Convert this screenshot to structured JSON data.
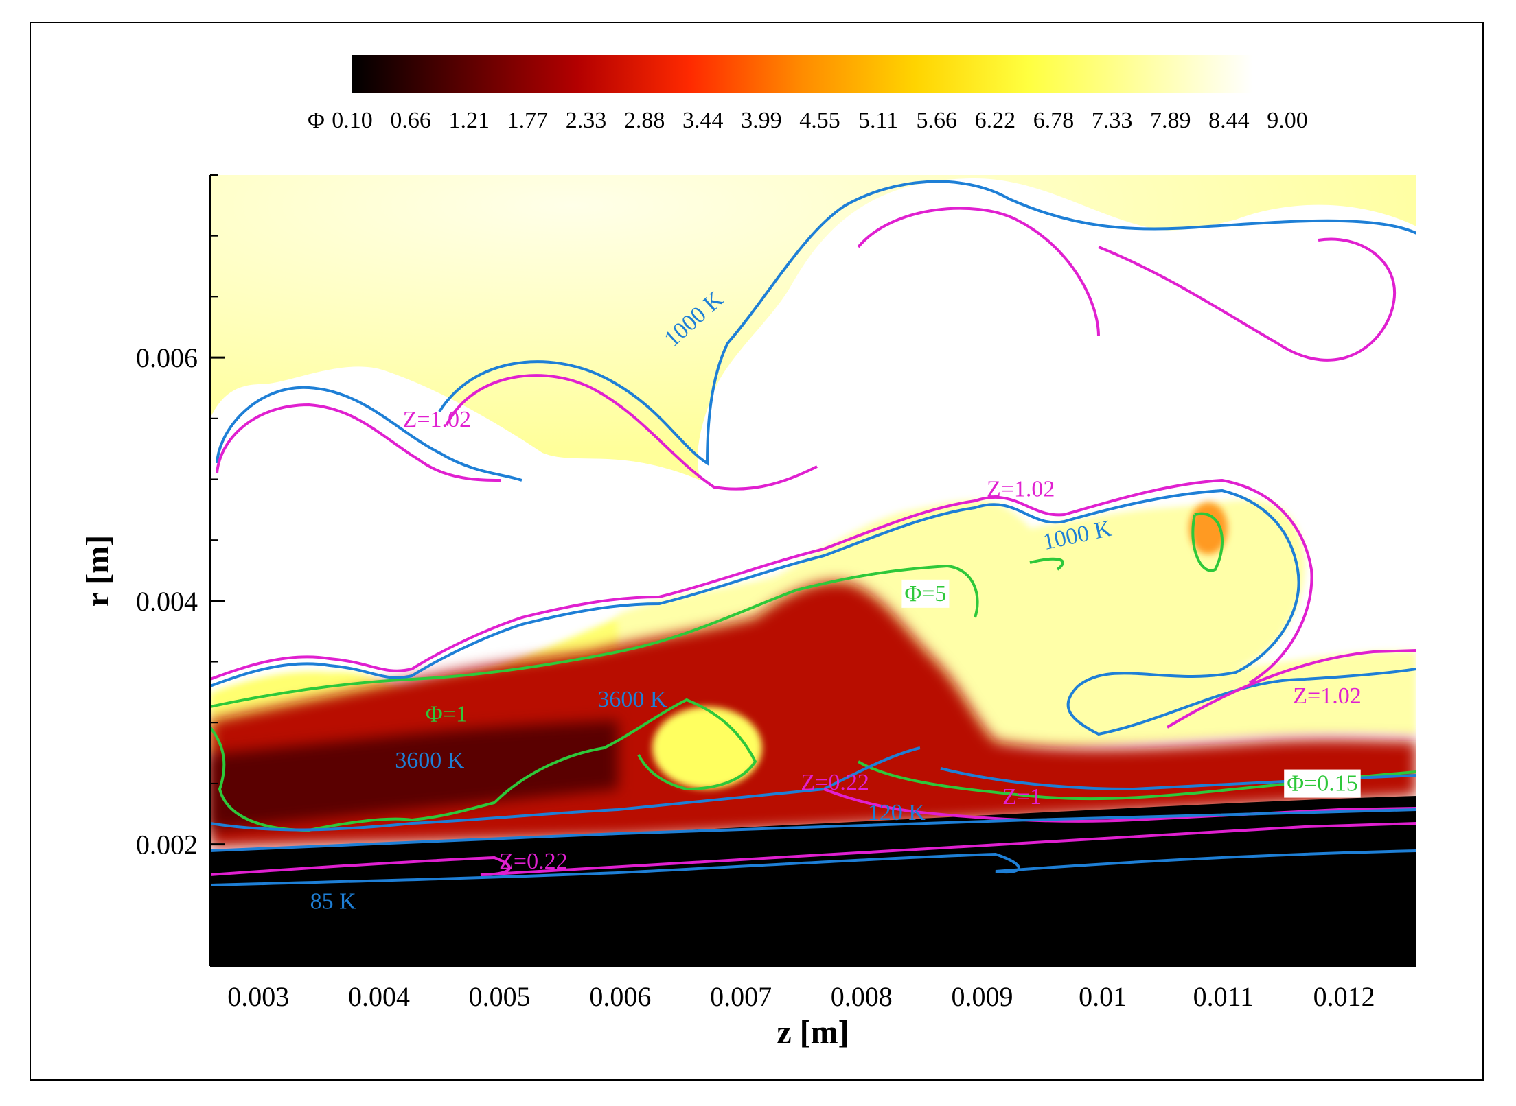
{
  "chart_data": {
    "type": "heatmap",
    "title": "",
    "xlabel": "z [m]",
    "ylabel": "r [m]",
    "xlim": [
      0.0026,
      0.0126
    ],
    "ylim": [
      0.001,
      0.0075
    ],
    "x_ticks": [
      0.003,
      0.004,
      0.005,
      0.006,
      0.007,
      0.008,
      0.009,
      0.01,
      0.011,
      0.012
    ],
    "x_tick_labels": [
      "0.003",
      "0.004",
      "0.005",
      "0.006",
      "0.007",
      "0.008",
      "0.009",
      "0.01",
      "0.011",
      "0.012"
    ],
    "y_ticks": [
      0.002,
      0.004,
      0.006
    ],
    "y_tick_labels": [
      "0.002",
      "0.004",
      "0.006"
    ],
    "y_minor_ticks": [
      0.0015,
      0.0025,
      0.003,
      0.0035,
      0.0045,
      0.005,
      0.0055,
      0.0065,
      0.007,
      0.0075
    ],
    "grid": false,
    "colorbar": {
      "variable": "Φ",
      "position": "top",
      "levels": [
        "0.10",
        "0.66",
        "1.21",
        "1.77",
        "2.33",
        "2.88",
        "3.44",
        "3.99",
        "4.55",
        "5.11",
        "5.66",
        "6.22",
        "6.78",
        "7.33",
        "7.89",
        "8.44",
        "9.00"
      ],
      "min": 0.1,
      "max": 9.0,
      "colors": [
        "#000000",
        "#5a0000",
        "#b30000",
        "#ff2a00",
        "#ff8c00",
        "#ffd400",
        "#ffff40",
        "#ffffa0",
        "#ffffff"
      ]
    },
    "contour_annotations": [
      {
        "text": "1000 K",
        "x": 0.00665,
        "y": 0.00627,
        "color": "#1e7fd6",
        "rotate": -42
      },
      {
        "text": "Z=1.02",
        "x": 0.00448,
        "y": 0.00543,
        "color": "#e020d0"
      },
      {
        "text": "Z=1.02",
        "x": 0.00932,
        "y": 0.00486,
        "color": "#e020d0"
      },
      {
        "text": "1000 K",
        "x": 0.0098,
        "y": 0.00448,
        "color": "#1e7fd6",
        "rotate": -12
      },
      {
        "text": "Φ=5",
        "x": 0.00853,
        "y": 0.004,
        "color": "#2ec83a",
        "box": true
      },
      {
        "text": "Φ=1",
        "x": 0.00456,
        "y": 0.00301,
        "color": "#2ec83a"
      },
      {
        "text": "3600 K",
        "x": 0.0061,
        "y": 0.00313,
        "color": "#1e7fd6"
      },
      {
        "text": "3600 K",
        "x": 0.00442,
        "y": 0.00263,
        "color": "#1e7fd6"
      },
      {
        "text": "Z=1.02",
        "x": 0.01186,
        "y": 0.00316,
        "color": "#e020d0"
      },
      {
        "text": "Z=0.22",
        "x": 0.00778,
        "y": 0.00245,
        "color": "#e020d0"
      },
      {
        "text": "Z=1",
        "x": 0.00933,
        "y": 0.00233,
        "color": "#e020d0"
      },
      {
        "text": "Φ=0.15",
        "x": 0.01182,
        "y": 0.00244,
        "color": "#2ec83a",
        "box": true
      },
      {
        "text": "120 K",
        "x": 0.00829,
        "y": 0.0022,
        "color": "#1e7fd6"
      },
      {
        "text": "Z=0.22",
        "x": 0.00528,
        "y": 0.0018,
        "color": "#e020d0"
      },
      {
        "text": "85 K",
        "x": 0.00362,
        "y": 0.00147,
        "color": "#1e7fd6"
      }
    ],
    "contour_colors": {
      "temperature": "#1e7fd6",
      "mixture_fraction": "#e020d0",
      "equivalence_ratio": "#2ec83a"
    }
  }
}
